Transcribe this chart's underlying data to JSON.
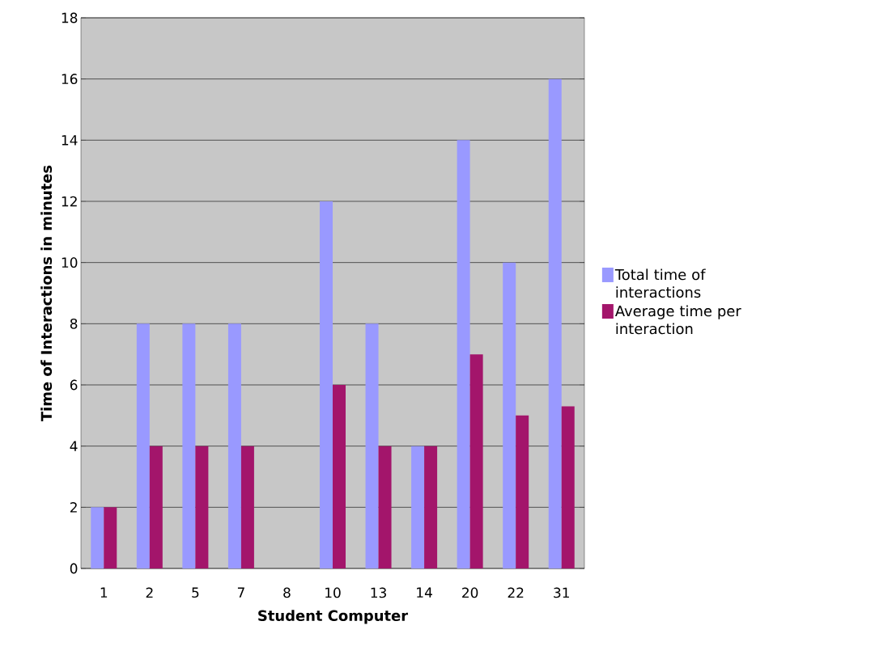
{
  "chart_data": {
    "type": "bar",
    "xlabel": "Student Computer",
    "ylabel": "Time of Interactions in minutes",
    "categories": [
      "1",
      "2",
      "5",
      "7",
      "8",
      "10",
      "13",
      "14",
      "20",
      "22",
      "31"
    ],
    "series": [
      {
        "name": "Total time of interactions",
        "color": "#9999ff",
        "values": [
          2,
          8,
          8,
          8,
          0,
          12,
          8,
          4,
          14,
          10,
          16
        ]
      },
      {
        "name": "Average time per interaction",
        "color": "#a3156b",
        "values": [
          2,
          4,
          4,
          4,
          0,
          6,
          4,
          4,
          7,
          5,
          5.3
        ]
      }
    ],
    "ylim": [
      0,
      18
    ],
    "yticks": [
      0,
      2,
      4,
      6,
      8,
      10,
      12,
      14,
      16,
      18
    ],
    "grid": "y",
    "legend": "right"
  }
}
